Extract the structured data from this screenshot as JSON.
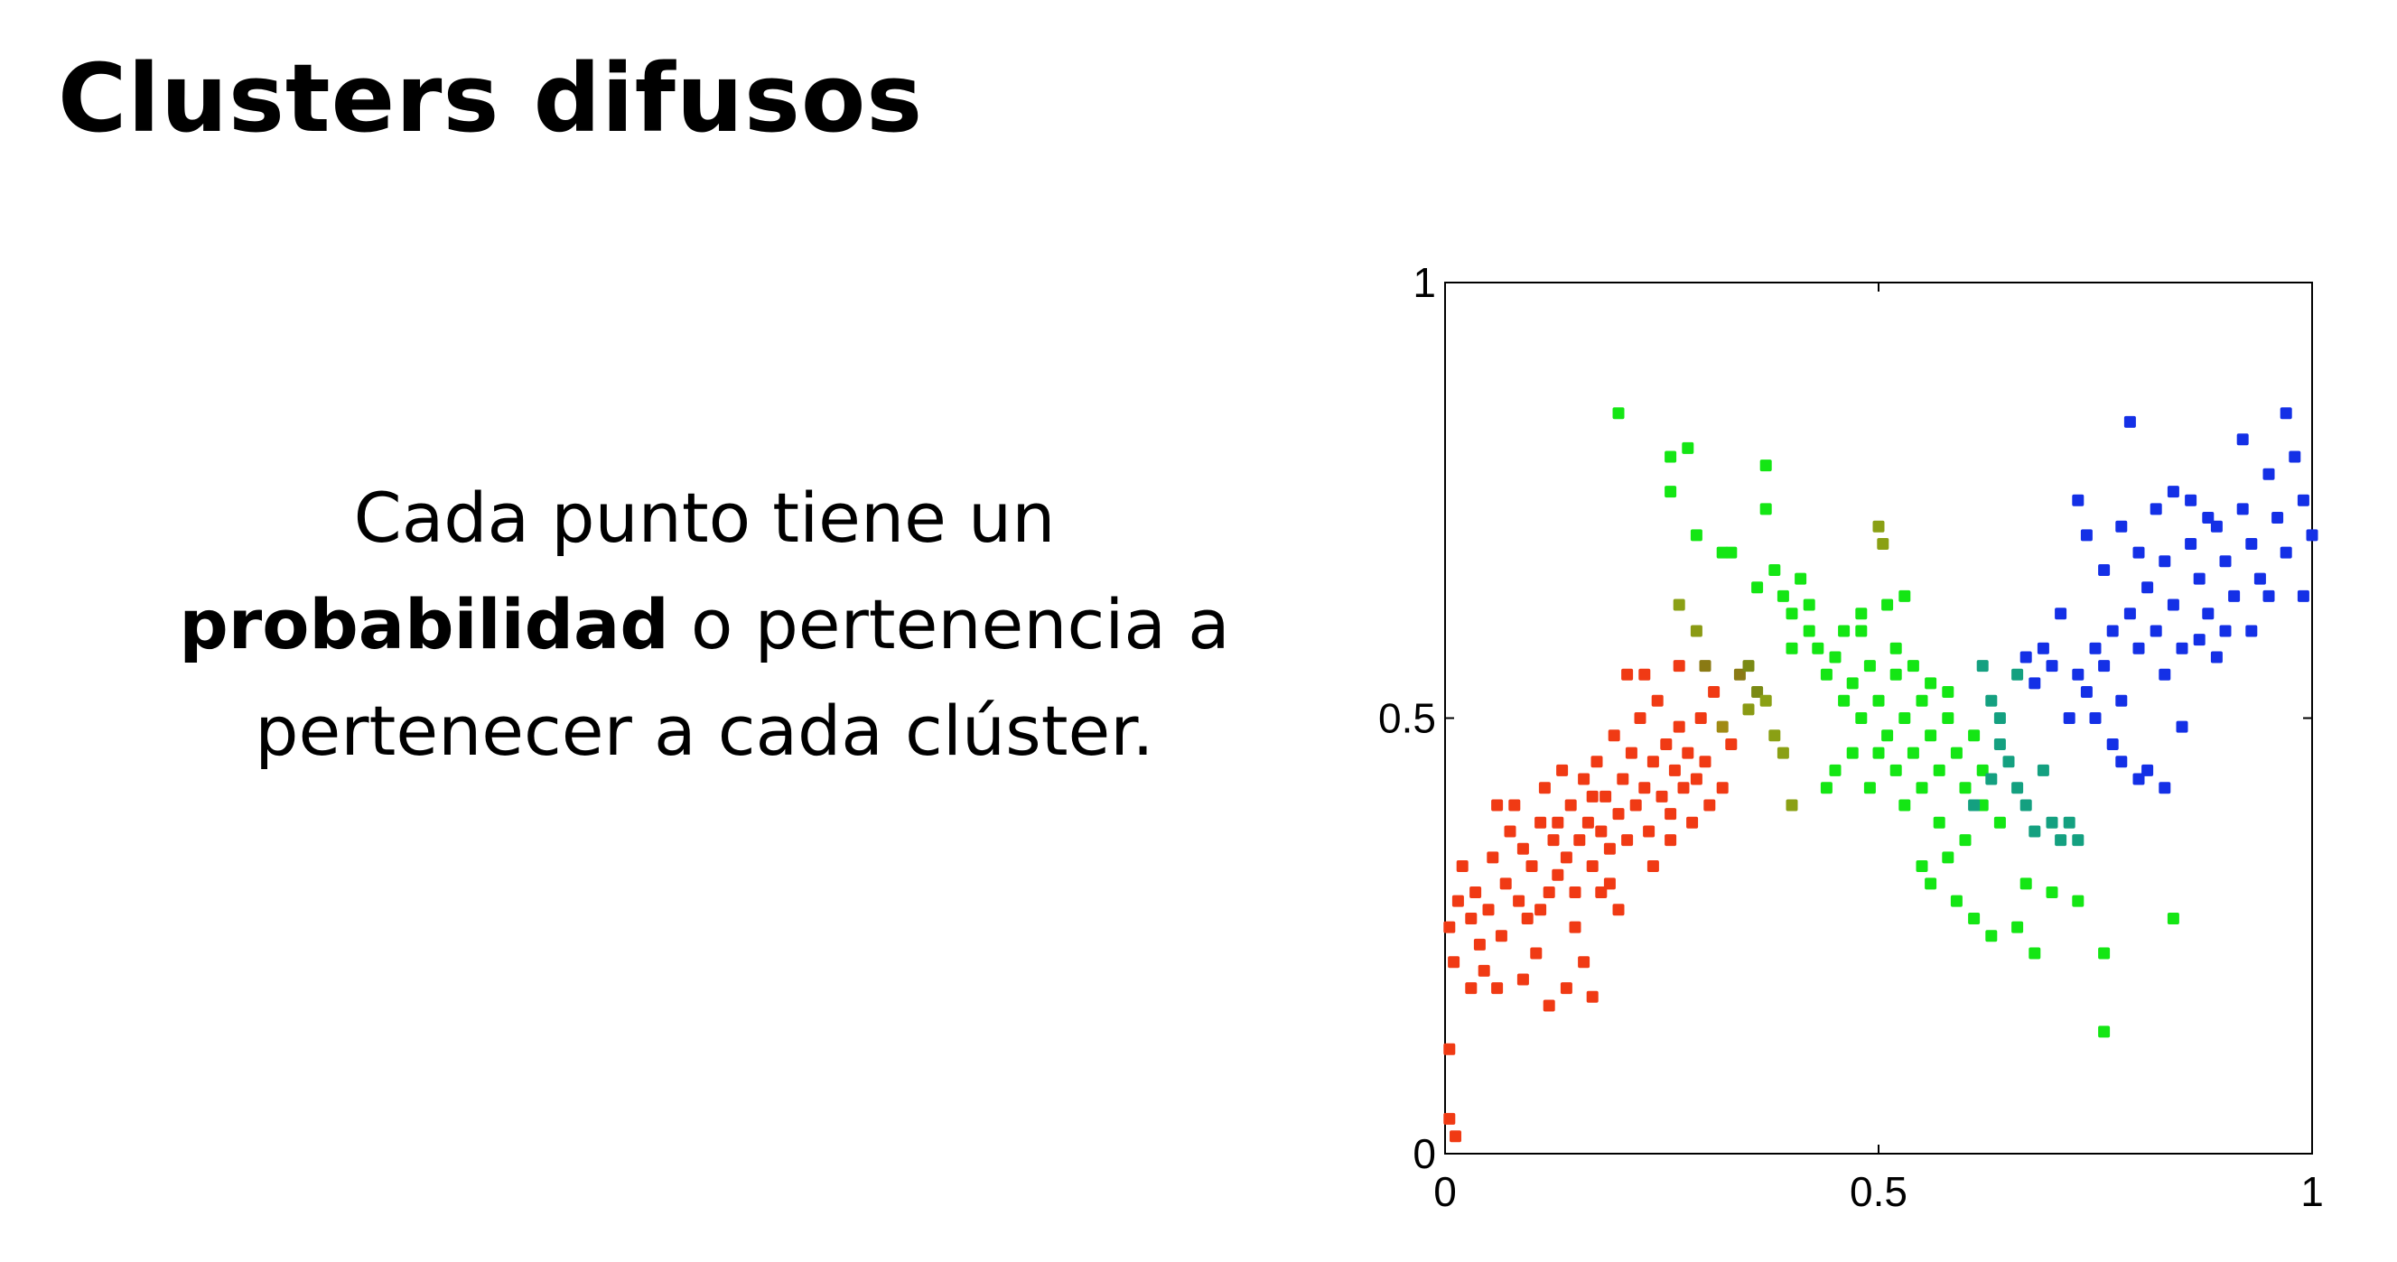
{
  "slide": {
    "title": "Clusters difusos",
    "text": {
      "line1": "Cada punto tiene un",
      "bold": "probabilidad",
      "line2_rest": " o pertenencia a",
      "line3": "pertenecer a cada clúster."
    }
  },
  "chart_data": {
    "type": "scatter",
    "xlim": [
      0,
      1
    ],
    "ylim": [
      0,
      1
    ],
    "xticks": [
      "0",
      "0.5",
      "1"
    ],
    "yticks": [
      "0",
      "0.5",
      "1"
    ],
    "grid": false,
    "legend": "none",
    "color_encoding": "fuzzy membership (red / green / blue clusters)",
    "cluster_colors": {
      "red": "#f03a14",
      "green": "#14e614",
      "blue": "#1430e6"
    },
    "points": [
      [
        0.005,
        0.26,
        "#f03a14"
      ],
      [
        0.015,
        0.29,
        "#f03a14"
      ],
      [
        0.01,
        0.22,
        "#f03a14"
      ],
      [
        0.02,
        0.33,
        "#f03a14"
      ],
      [
        0.03,
        0.27,
        "#f03a14"
      ],
      [
        0.035,
        0.3,
        "#f03a14"
      ],
      [
        0.04,
        0.24,
        "#f03a14"
      ],
      [
        0.045,
        0.21,
        "#f03a14"
      ],
      [
        0.05,
        0.28,
        "#f03a14"
      ],
      [
        0.055,
        0.34,
        "#f03a14"
      ],
      [
        0.06,
        0.4,
        "#f03a14"
      ],
      [
        0.065,
        0.25,
        "#f03a14"
      ],
      [
        0.07,
        0.31,
        "#f03a14"
      ],
      [
        0.075,
        0.37,
        "#f03a14"
      ],
      [
        0.08,
        0.4,
        "#f03a14"
      ],
      [
        0.085,
        0.29,
        "#f03a14"
      ],
      [
        0.09,
        0.35,
        "#f03a14"
      ],
      [
        0.095,
        0.27,
        "#f03a14"
      ],
      [
        0.1,
        0.33,
        "#f03a14"
      ],
      [
        0.105,
        0.23,
        "#f03a14"
      ],
      [
        0.11,
        0.38,
        "#f03a14"
      ],
      [
        0.115,
        0.42,
        "#f03a14"
      ],
      [
        0.12,
        0.3,
        "#f03a14"
      ],
      [
        0.125,
        0.36,
        "#f03a14"
      ],
      [
        0.13,
        0.32,
        "#f03a14"
      ],
      [
        0.135,
        0.44,
        "#f03a14"
      ],
      [
        0.14,
        0.34,
        "#f03a14"
      ],
      [
        0.145,
        0.4,
        "#f03a14"
      ],
      [
        0.15,
        0.3,
        "#f03a14"
      ],
      [
        0.155,
        0.36,
        "#f03a14"
      ],
      [
        0.16,
        0.43,
        "#f03a14"
      ],
      [
        0.165,
        0.38,
        "#f03a14"
      ],
      [
        0.17,
        0.33,
        "#f03a14"
      ],
      [
        0.175,
        0.45,
        "#f03a14"
      ],
      [
        0.18,
        0.37,
        "#f03a14"
      ],
      [
        0.185,
        0.41,
        "#f03a14"
      ],
      [
        0.19,
        0.35,
        "#f03a14"
      ],
      [
        0.195,
        0.48,
        "#f03a14"
      ],
      [
        0.2,
        0.39,
        "#f03a14"
      ],
      [
        0.205,
        0.43,
        "#f03a14"
      ],
      [
        0.21,
        0.36,
        "#f03a14"
      ],
      [
        0.215,
        0.46,
        "#f03a14"
      ],
      [
        0.22,
        0.4,
        "#f03a14"
      ],
      [
        0.225,
        0.5,
        "#f03a14"
      ],
      [
        0.23,
        0.42,
        "#f03a14"
      ],
      [
        0.235,
        0.37,
        "#f03a14"
      ],
      [
        0.24,
        0.45,
        "#f03a14"
      ],
      [
        0.245,
        0.52,
        "#f03a14"
      ],
      [
        0.25,
        0.41,
        "#f03a14"
      ],
      [
        0.255,
        0.47,
        "#f03a14"
      ],
      [
        0.26,
        0.39,
        "#f03a14"
      ],
      [
        0.265,
        0.44,
        "#f03a14"
      ],
      [
        0.27,
        0.49,
        "#f03a14"
      ],
      [
        0.275,
        0.42,
        "#f03a14"
      ],
      [
        0.28,
        0.46,
        "#f03a14"
      ],
      [
        0.285,
        0.38,
        "#f03a14"
      ],
      [
        0.29,
        0.43,
        "#f03a14"
      ],
      [
        0.295,
        0.5,
        "#f03a14"
      ],
      [
        0.3,
        0.45,
        "#f03a14"
      ],
      [
        0.305,
        0.4,
        "#f03a14"
      ],
      [
        0.31,
        0.53,
        "#f03a14"
      ],
      [
        0.12,
        0.17,
        "#f03a14"
      ],
      [
        0.14,
        0.19,
        "#f03a14"
      ],
      [
        0.16,
        0.22,
        "#f03a14"
      ],
      [
        0.17,
        0.18,
        "#f03a14"
      ],
      [
        0.005,
        0.12,
        "#f03a14"
      ],
      [
        0.005,
        0.04,
        "#f03a14"
      ],
      [
        0.012,
        0.02,
        "#f03a14"
      ],
      [
        0.09,
        0.2,
        "#f03a14"
      ],
      [
        0.21,
        0.55,
        "#f03a14"
      ],
      [
        0.23,
        0.55,
        "#f03a14"
      ],
      [
        0.27,
        0.56,
        "#f03a14"
      ],
      [
        0.18,
        0.3,
        "#f03a14"
      ],
      [
        0.15,
        0.26,
        "#f03a14"
      ],
      [
        0.11,
        0.28,
        "#f03a14"
      ],
      [
        0.13,
        0.38,
        "#f03a14"
      ],
      [
        0.17,
        0.41,
        "#f03a14"
      ],
      [
        0.19,
        0.31,
        "#f03a14"
      ],
      [
        0.24,
        0.33,
        "#f03a14"
      ],
      [
        0.26,
        0.36,
        "#f03a14"
      ],
      [
        0.2,
        0.28,
        "#f03a14"
      ],
      [
        0.06,
        0.19,
        "#f03a14"
      ],
      [
        0.03,
        0.19,
        "#f03a14"
      ],
      [
        0.32,
        0.42,
        "#f03a14"
      ],
      [
        0.33,
        0.47,
        "#f03a14"
      ],
      [
        0.29,
        0.6,
        "#8a9a14"
      ],
      [
        0.3,
        0.56,
        "#8a7a14"
      ],
      [
        0.34,
        0.55,
        "#8a7a14"
      ],
      [
        0.35,
        0.51,
        "#8a9a14"
      ],
      [
        0.36,
        0.53,
        "#7a8a14"
      ],
      [
        0.38,
        0.48,
        "#8aa014"
      ],
      [
        0.39,
        0.46,
        "#8aa014"
      ],
      [
        0.4,
        0.4,
        "#8aa014"
      ],
      [
        0.37,
        0.52,
        "#8aa014"
      ],
      [
        0.35,
        0.56,
        "#7a8a14"
      ],
      [
        0.5,
        0.72,
        "#8aa014"
      ],
      [
        0.505,
        0.7,
        "#8aa014"
      ],
      [
        0.27,
        0.63,
        "#8aa014"
      ],
      [
        0.32,
        0.49,
        "#a08a14"
      ],
      [
        0.2,
        0.85,
        "#14e614"
      ],
      [
        0.26,
        0.8,
        "#14e614"
      ],
      [
        0.28,
        0.81,
        "#14e614"
      ],
      [
        0.26,
        0.76,
        "#14e614"
      ],
      [
        0.37,
        0.79,
        "#14e614"
      ],
      [
        0.37,
        0.74,
        "#14e614"
      ],
      [
        0.29,
        0.71,
        "#14e614"
      ],
      [
        0.32,
        0.69,
        "#14e614"
      ],
      [
        0.33,
        0.69,
        "#14e614"
      ],
      [
        0.36,
        0.65,
        "#14e614"
      ],
      [
        0.38,
        0.67,
        "#14e614"
      ],
      [
        0.39,
        0.64,
        "#14e614"
      ],
      [
        0.4,
        0.62,
        "#14e614"
      ],
      [
        0.41,
        0.66,
        "#14e614"
      ],
      [
        0.42,
        0.6,
        "#14e614"
      ],
      [
        0.43,
        0.58,
        "#14e614"
      ],
      [
        0.44,
        0.55,
        "#14e614"
      ],
      [
        0.45,
        0.57,
        "#14e614"
      ],
      [
        0.46,
        0.52,
        "#14e614"
      ],
      [
        0.47,
        0.54,
        "#14e614"
      ],
      [
        0.48,
        0.5,
        "#14e614"
      ],
      [
        0.49,
        0.56,
        "#14e614"
      ],
      [
        0.5,
        0.52,
        "#14e614"
      ],
      [
        0.51,
        0.48,
        "#14e614"
      ],
      [
        0.52,
        0.55,
        "#14e614"
      ],
      [
        0.53,
        0.5,
        "#14e614"
      ],
      [
        0.54,
        0.46,
        "#14e614"
      ],
      [
        0.55,
        0.52,
        "#14e614"
      ],
      [
        0.56,
        0.48,
        "#14e614"
      ],
      [
        0.57,
        0.44,
        "#14e614"
      ],
      [
        0.58,
        0.5,
        "#14e614"
      ],
      [
        0.59,
        0.46,
        "#14e614"
      ],
      [
        0.6,
        0.42,
        "#14e614"
      ],
      [
        0.61,
        0.48,
        "#14e614"
      ],
      [
        0.62,
        0.44,
        "#14e614"
      ],
      [
        0.44,
        0.42,
        "#14e614"
      ],
      [
        0.45,
        0.44,
        "#14e614"
      ],
      [
        0.47,
        0.46,
        "#14e614"
      ],
      [
        0.52,
        0.44,
        "#14e614"
      ],
      [
        0.53,
        0.4,
        "#14e614"
      ],
      [
        0.55,
        0.42,
        "#14e614"
      ],
      [
        0.57,
        0.38,
        "#14e614"
      ],
      [
        0.58,
        0.34,
        "#14e614"
      ],
      [
        0.6,
        0.36,
        "#14e614"
      ],
      [
        0.62,
        0.4,
        "#14e614"
      ],
      [
        0.64,
        0.38,
        "#14e614"
      ],
      [
        0.52,
        0.58,
        "#14e614"
      ],
      [
        0.54,
        0.56,
        "#14e614"
      ],
      [
        0.56,
        0.54,
        "#14e614"
      ],
      [
        0.58,
        0.53,
        "#14e614"
      ],
      [
        0.51,
        0.63,
        "#14e614"
      ],
      [
        0.53,
        0.64,
        "#14e614"
      ],
      [
        0.48,
        0.62,
        "#14e614"
      ],
      [
        0.46,
        0.6,
        "#14e614"
      ],
      [
        0.55,
        0.33,
        "#14e614"
      ],
      [
        0.56,
        0.31,
        "#14e614"
      ],
      [
        0.59,
        0.29,
        "#14e614"
      ],
      [
        0.61,
        0.27,
        "#14e614"
      ],
      [
        0.63,
        0.25,
        "#14e614"
      ],
      [
        0.66,
        0.26,
        "#14e614"
      ],
      [
        0.68,
        0.23,
        "#14e614"
      ],
      [
        0.7,
        0.3,
        "#14e614"
      ],
      [
        0.76,
        0.23,
        "#14e614"
      ],
      [
        0.76,
        0.14,
        "#14e614"
      ],
      [
        0.84,
        0.27,
        "#14e614"
      ],
      [
        0.73,
        0.29,
        "#14e614"
      ],
      [
        0.67,
        0.31,
        "#14e614"
      ],
      [
        0.42,
        0.63,
        "#14e614"
      ],
      [
        0.4,
        0.58,
        "#14e614"
      ],
      [
        0.5,
        0.46,
        "#14e614"
      ],
      [
        0.49,
        0.42,
        "#14e614"
      ],
      [
        0.48,
        0.6,
        "#14e614"
      ],
      [
        0.62,
        0.56,
        "#14a080"
      ],
      [
        0.63,
        0.52,
        "#14a080"
      ],
      [
        0.64,
        0.5,
        "#14a080"
      ],
      [
        0.65,
        0.45,
        "#14a080"
      ],
      [
        0.66,
        0.42,
        "#14a080"
      ],
      [
        0.67,
        0.4,
        "#14a080"
      ],
      [
        0.68,
        0.37,
        "#14a080"
      ],
      [
        0.69,
        0.44,
        "#14a080"
      ],
      [
        0.7,
        0.38,
        "#14a080"
      ],
      [
        0.66,
        0.55,
        "#14a080"
      ],
      [
        0.64,
        0.47,
        "#14a080"
      ],
      [
        0.71,
        0.36,
        "#14a080"
      ],
      [
        0.72,
        0.38,
        "#14a080"
      ],
      [
        0.63,
        0.43,
        "#14a080"
      ],
      [
        0.61,
        0.4,
        "#14a080"
      ],
      [
        0.73,
        0.36,
        "#14a080"
      ],
      [
        0.67,
        0.57,
        "#1430e6"
      ],
      [
        0.68,
        0.54,
        "#1430e6"
      ],
      [
        0.7,
        0.56,
        "#1430e6"
      ],
      [
        0.72,
        0.5,
        "#1430e6"
      ],
      [
        0.73,
        0.55,
        "#1430e6"
      ],
      [
        0.74,
        0.53,
        "#1430e6"
      ],
      [
        0.75,
        0.58,
        "#1430e6"
      ],
      [
        0.76,
        0.56,
        "#1430e6"
      ],
      [
        0.77,
        0.6,
        "#1430e6"
      ],
      [
        0.78,
        0.52,
        "#1430e6"
      ],
      [
        0.79,
        0.62,
        "#1430e6"
      ],
      [
        0.8,
        0.58,
        "#1430e6"
      ],
      [
        0.81,
        0.65,
        "#1430e6"
      ],
      [
        0.82,
        0.6,
        "#1430e6"
      ],
      [
        0.83,
        0.68,
        "#1430e6"
      ],
      [
        0.84,
        0.63,
        "#1430e6"
      ],
      [
        0.85,
        0.58,
        "#1430e6"
      ],
      [
        0.86,
        0.7,
        "#1430e6"
      ],
      [
        0.87,
        0.66,
        "#1430e6"
      ],
      [
        0.88,
        0.62,
        "#1430e6"
      ],
      [
        0.89,
        0.72,
        "#1430e6"
      ],
      [
        0.9,
        0.68,
        "#1430e6"
      ],
      [
        0.91,
        0.64,
        "#1430e6"
      ],
      [
        0.92,
        0.74,
        "#1430e6"
      ],
      [
        0.93,
        0.7,
        "#1430e6"
      ],
      [
        0.94,
        0.66,
        "#1430e6"
      ],
      [
        0.95,
        0.78,
        "#1430e6"
      ],
      [
        0.96,
        0.73,
        "#1430e6"
      ],
      [
        0.97,
        0.69,
        "#1430e6"
      ],
      [
        0.98,
        0.8,
        "#1430e6"
      ],
      [
        0.99,
        0.75,
        "#1430e6"
      ],
      [
        1.0,
        0.71,
        "#1430e6"
      ],
      [
        0.97,
        0.85,
        "#1430e6"
      ],
      [
        0.92,
        0.82,
        "#1430e6"
      ],
      [
        0.79,
        0.84,
        "#1430e6"
      ],
      [
        0.73,
        0.75,
        "#1430e6"
      ],
      [
        0.74,
        0.71,
        "#1430e6"
      ],
      [
        0.76,
        0.67,
        "#1430e6"
      ],
      [
        0.78,
        0.72,
        "#1430e6"
      ],
      [
        0.8,
        0.69,
        "#1430e6"
      ],
      [
        0.82,
        0.74,
        "#1430e6"
      ],
      [
        0.84,
        0.76,
        "#1430e6"
      ],
      [
        0.86,
        0.75,
        "#1430e6"
      ],
      [
        0.88,
        0.73,
        "#1430e6"
      ],
      [
        0.9,
        0.6,
        "#1430e6"
      ],
      [
        0.85,
        0.49,
        "#1430e6"
      ],
      [
        0.8,
        0.43,
        "#1430e6"
      ],
      [
        0.81,
        0.44,
        "#1430e6"
      ],
      [
        0.78,
        0.45,
        "#1430e6"
      ],
      [
        0.75,
        0.5,
        "#1430e6"
      ],
      [
        0.77,
        0.47,
        "#1430e6"
      ],
      [
        0.83,
        0.55,
        "#1430e6"
      ],
      [
        0.87,
        0.59,
        "#1430e6"
      ],
      [
        0.95,
        0.64,
        "#1430e6"
      ],
      [
        0.99,
        0.64,
        "#1430e6"
      ],
      [
        0.93,
        0.6,
        "#1430e6"
      ],
      [
        0.89,
        0.57,
        "#1430e6"
      ],
      [
        0.71,
        0.62,
        "#1430e6"
      ],
      [
        0.69,
        0.58,
        "#1430e6"
      ],
      [
        0.83,
        0.42,
        "#1430e6"
      ]
    ]
  }
}
